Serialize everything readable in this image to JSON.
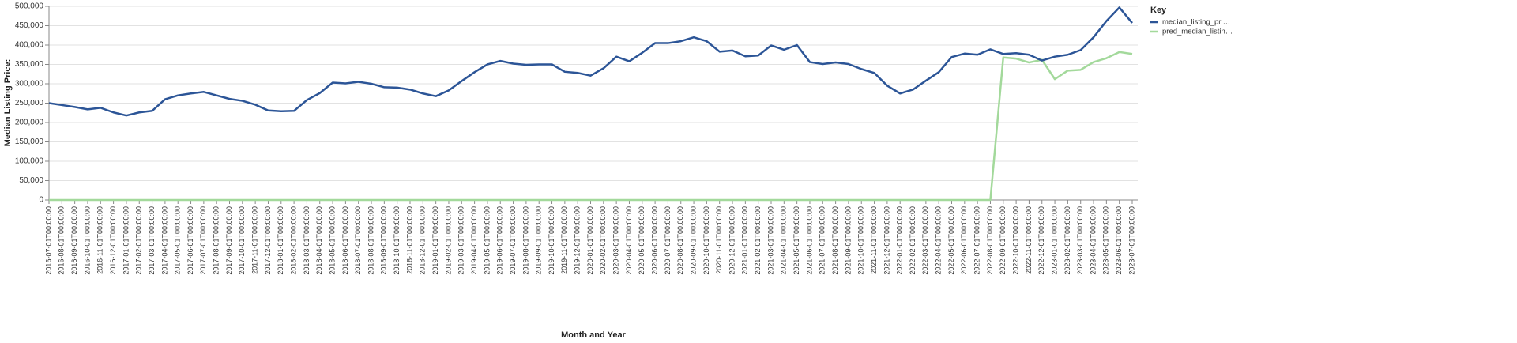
{
  "chart_data": {
    "type": "line",
    "x_label": "Month and Year",
    "y_label": "Median Listing Price:",
    "legend_title": "Key",
    "legend_position": "right",
    "grid": true,
    "categories": [
      "2016-07-01T00:00:00",
      "2016-08-01T00:00:00",
      "2016-09-01T00:00:00",
      "2016-10-01T00:00:00",
      "2016-11-01T00:00:00",
      "2016-12-01T00:00:00",
      "2017-01-01T00:00:00",
      "2017-02-01T00:00:00",
      "2017-03-01T00:00:00",
      "2017-04-01T00:00:00",
      "2017-05-01T00:00:00",
      "2017-06-01T00:00:00",
      "2017-07-01T00:00:00",
      "2017-08-01T00:00:00",
      "2017-09-01T00:00:00",
      "2017-10-01T00:00:00",
      "2017-11-01T00:00:00",
      "2017-12-01T00:00:00",
      "2018-01-01T00:00:00",
      "2018-02-01T00:00:00",
      "2018-03-01T00:00:00",
      "2018-04-01T00:00:00",
      "2018-05-01T00:00:00",
      "2018-06-01T00:00:00",
      "2018-07-01T00:00:00",
      "2018-08-01T00:00:00",
      "2018-09-01T00:00:00",
      "2018-10-01T00:00:00",
      "2018-11-01T00:00:00",
      "2018-12-01T00:00:00",
      "2019-01-01T00:00:00",
      "2019-02-01T00:00:00",
      "2019-03-01T00:00:00",
      "2019-04-01T00:00:00",
      "2019-05-01T00:00:00",
      "2019-06-01T00:00:00",
      "2019-07-01T00:00:00",
      "2019-08-01T00:00:00",
      "2019-09-01T00:00:00",
      "2019-10-01T00:00:00",
      "2019-11-01T00:00:00",
      "2019-12-01T00:00:00",
      "2020-01-01T00:00:00",
      "2020-02-01T00:00:00",
      "2020-03-01T00:00:00",
      "2020-04-01T00:00:00",
      "2020-05-01T00:00:00",
      "2020-06-01T00:00:00",
      "2020-07-01T00:00:00",
      "2020-08-01T00:00:00",
      "2020-09-01T00:00:00",
      "2020-10-01T00:00:00",
      "2020-11-01T00:00:00",
      "2020-12-01T00:00:00",
      "2021-01-01T00:00:00",
      "2021-02-01T00:00:00",
      "2021-03-01T00:00:00",
      "2021-04-01T00:00:00",
      "2021-05-01T00:00:00",
      "2021-06-01T00:00:00",
      "2021-07-01T00:00:00",
      "2021-08-01T00:00:00",
      "2021-09-01T00:00:00",
      "2021-10-01T00:00:00",
      "2021-11-01T00:00:00",
      "2021-12-01T00:00:00",
      "2022-01-01T00:00:00",
      "2022-02-01T00:00:00",
      "2022-03-01T00:00:00",
      "2022-04-01T00:00:00",
      "2022-05-01T00:00:00",
      "2022-06-01T00:00:00",
      "2022-07-01T00:00:00",
      "2022-08-01T00:00:00",
      "2022-09-01T00:00:00",
      "2022-10-01T00:00:00",
      "2022-11-01T00:00:00",
      "2022-12-01T00:00:00",
      "2023-01-01T00:00:00",
      "2023-02-01T00:00:00",
      "2023-03-01T00:00:00",
      "2023-04-01T00:00:00",
      "2023-05-01T00:00:00",
      "2023-06-01T00:00:00",
      "2023-07-01T00:00:00"
    ],
    "series": [
      {
        "name": "median_listing_pri…",
        "color": "#2c5597",
        "values": [
          250000,
          245000,
          240000,
          234000,
          238000,
          226000,
          218000,
          226000,
          230000,
          260000,
          270000,
          275000,
          279000,
          270000,
          261000,
          256000,
          246000,
          231000,
          229000,
          230000,
          258000,
          276000,
          303000,
          301000,
          305000,
          300000,
          291000,
          290000,
          285000,
          275000,
          268000,
          283000,
          307000,
          330000,
          350000,
          359000,
          352000,
          349000,
          350000,
          350000,
          331000,
          328000,
          321000,
          340000,
          370000,
          358000,
          380000,
          405000,
          405000,
          410000,
          420000,
          410000,
          383000,
          386000,
          371000,
          373000,
          399000,
          388000,
          400000,
          356000,
          351000,
          355000,
          351000,
          338000,
          328000,
          295000,
          275000,
          285000,
          308000,
          330000,
          369000,
          378000,
          375000,
          389000,
          377000,
          379000,
          375000,
          360000,
          370000,
          375000,
          387000,
          420000,
          462000,
          497000,
          457000
        ]
      },
      {
        "name": "pred_median_listin…",
        "color": "#a3d99b",
        "values": [
          0,
          0,
          0,
          0,
          0,
          0,
          0,
          0,
          0,
          0,
          0,
          0,
          0,
          0,
          0,
          0,
          0,
          0,
          0,
          0,
          0,
          0,
          0,
          0,
          0,
          0,
          0,
          0,
          0,
          0,
          0,
          0,
          0,
          0,
          0,
          0,
          0,
          0,
          0,
          0,
          0,
          0,
          0,
          0,
          0,
          0,
          0,
          0,
          0,
          0,
          0,
          0,
          0,
          0,
          0,
          0,
          0,
          0,
          0,
          0,
          0,
          0,
          0,
          0,
          0,
          0,
          0,
          0,
          0,
          0,
          0,
          0,
          0,
          0,
          368000,
          365000,
          355000,
          362000,
          312000,
          334000,
          336000,
          356000,
          366000,
          382000,
          377000
        ]
      }
    ],
    "ylim": [
      0,
      500000
    ],
    "yticks": [
      0,
      {
        "value": 50000,
        "label": "50,000"
      },
      {
        "value": 100000,
        "label": "100,000"
      },
      {
        "value": 150000,
        "label": "150,000"
      },
      {
        "value": 200000,
        "label": "200,000"
      },
      {
        "value": 250000,
        "label": "250,000"
      },
      {
        "value": 300000,
        "label": "300,000"
      },
      {
        "value": 350000,
        "label": "350,000"
      },
      {
        "value": 400000,
        "label": "400,000"
      },
      {
        "value": 450000,
        "label": "450,000"
      },
      {
        "value": 500000,
        "label": "500,000"
      }
    ]
  }
}
